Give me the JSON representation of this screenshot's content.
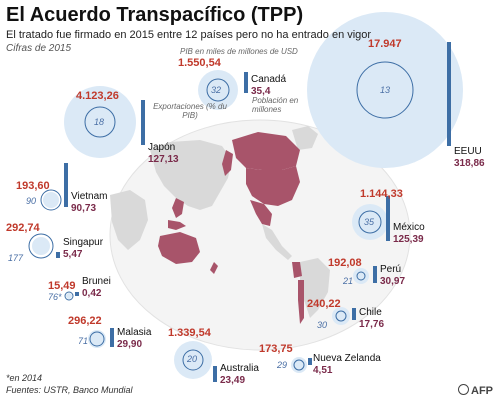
{
  "header": {
    "title": "El Acuerdo Transpacífico (TPP)",
    "subtitle": "El tratado fue firmado en 2015 entre 12 países pero no ha entrado en vigor",
    "note": "Cifras de 2015"
  },
  "legend": {
    "gdp": "PIB en miles de millones de USD",
    "exports": "Exportaciones (% du PIB)",
    "population": "Población en millones"
  },
  "colors": {
    "tpp_country": "#a8546a",
    "other_land": "#d9d9d9",
    "gdp_circle": "#dbe9f6",
    "exports_ring": "#3d6ea5",
    "population_bar": "#3d6ea5",
    "gdp_text": "#c0392b",
    "population_text": "#7a2a4a"
  },
  "countries": {
    "eeuu": {
      "name": "EEUU",
      "gdp": "17.947",
      "exports": "13",
      "population": "318,86"
    },
    "canada": {
      "name": "Canadá",
      "gdp": "1.550,54",
      "exports": "32",
      "population": "35,4"
    },
    "japon": {
      "name": "Japón",
      "gdp": "4.123,26",
      "exports": "18",
      "population": "127,13"
    },
    "vietnam": {
      "name": "Vietnam",
      "gdp": "193,60",
      "exports": "90",
      "population": "90,73"
    },
    "mexico": {
      "name": "México",
      "gdp": "1.144,33",
      "exports": "35",
      "population": "125,39"
    },
    "singapur": {
      "name": "Singapur",
      "gdp": "292,74",
      "exports": "177",
      "population": "5,47"
    },
    "peru": {
      "name": "Perú",
      "gdp": "192,08",
      "exports": "21",
      "population": "30,97"
    },
    "brunei": {
      "name": "Brunei",
      "gdp": "15,49",
      "exports": "76*",
      "population": "0,42"
    },
    "chile": {
      "name": "Chile",
      "gdp": "240,22",
      "exports": "30",
      "population": "17,76"
    },
    "malasia": {
      "name": "Malasia",
      "gdp": "296,22",
      "exports": "71",
      "population": "29,90"
    },
    "australia": {
      "name": "Australia",
      "gdp": "1.339,54",
      "exports": "20",
      "population": "23,49"
    },
    "nueva_zelanda": {
      "name": "Nueva Zelanda",
      "gdp": "173,75",
      "exports": "29",
      "population": "4,51"
    }
  },
  "footer": {
    "footnote": "*en 2014",
    "sources": "Fuentes: USTR, Banco Mundial",
    "logo": "AFP"
  }
}
